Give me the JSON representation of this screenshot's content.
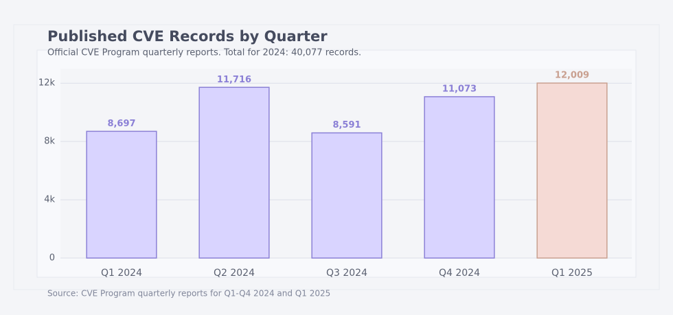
{
  "chart_data": {
    "type": "bar",
    "title": "Published CVE Records by Quarter",
    "subtitle": "Official CVE Program quarterly reports. Total for 2024: 40,077 records.",
    "source": "Source: CVE Program quarterly reports for Q1-Q4 2024 and Q1 2025",
    "categories": [
      "Q1 2024",
      "Q2 2024",
      "Q3 2024",
      "Q4 2024",
      "Q1 2025"
    ],
    "values": [
      8697,
      11716,
      8591,
      11073,
      12009
    ],
    "value_labels": [
      "8,697",
      "11,716",
      "8,591",
      "11,073",
      "12,009"
    ],
    "colors": [
      "#d9d4ff",
      "#d9d4ff",
      "#d9d4ff",
      "#d9d4ff",
      "#f5dad5"
    ],
    "edge_colors": [
      "#8b80d6",
      "#8b80d6",
      "#8b80d6",
      "#8b80d6",
      "#c9a090"
    ],
    "ylim": [
      0,
      13000
    ],
    "yticks": [
      0,
      {
        "value": 4000,
        "label": "4k"
      },
      {
        "value": 8000,
        "label": "8k"
      },
      {
        "value": 12000,
        "label": "12k"
      }
    ],
    "grid": true
  }
}
